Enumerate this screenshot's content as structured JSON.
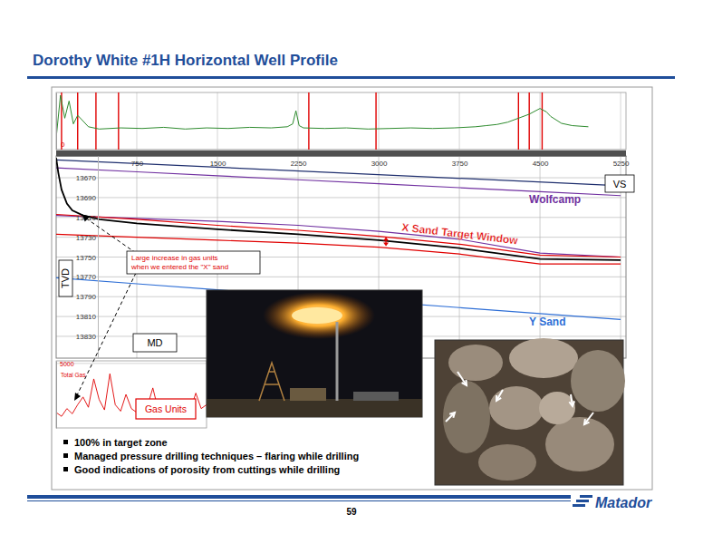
{
  "chart_data": [
    {
      "type": "line",
      "title": "Dorothy White #1H Horizontal Well Profile",
      "x_label": "VS",
      "y_label": "TVD",
      "xlim": [
        0,
        5300
      ],
      "ylim": [
        13648,
        13852
      ],
      "xticks": [
        750,
        1500,
        2250,
        3000,
        3750,
        4500,
        5250
      ],
      "yticks": [
        13670,
        13690,
        13710,
        13730,
        13750,
        13770,
        13790,
        13810,
        13830
      ],
      "grid": true,
      "series": [
        {
          "color": "#1f2f6e",
          "x": [
            0,
            5250
          ],
          "values": [
            13652,
            13678
          ]
        },
        {
          "name": "Wolfcamp",
          "color": "#7030a0",
          "x": [
            0,
            750,
            1500,
            2250,
            3000,
            3750,
            4500,
            5250
          ],
          "values": [
            13660,
            13664,
            13668,
            13672,
            13676,
            13680,
            13684,
            13688
          ]
        },
        {
          "color": "#7030a0",
          "x": [
            0,
            750,
            1500,
            2250,
            3000,
            3750,
            4500,
            5250
          ],
          "values": [
            13708,
            13711,
            13714,
            13718,
            13724,
            13732,
            13746,
            13750
          ]
        },
        {
          "color": "#e00000",
          "x": [
            0,
            750,
            1500,
            2250,
            3000,
            3750,
            4500,
            5250
          ],
          "values": [
            13707,
            13712,
            13718,
            13723,
            13729,
            13737,
            13748,
            13750
          ]
        },
        {
          "color": "#e00000",
          "x": [
            0,
            750,
            1500,
            2250,
            3000,
            3750,
            4500,
            5250
          ],
          "values": [
            13727,
            13730,
            13733,
            13736,
            13740,
            13747,
            13757,
            13757
          ]
        },
        {
          "color": "#000000",
          "x": [
            0,
            20,
            50,
            100,
            150,
            250,
            400,
            750,
            1500,
            2250,
            3000,
            3750,
            4500,
            5250
          ],
          "values": [
            13650,
            13665,
            13682,
            13696,
            13703,
            13708,
            13712,
            13716,
            13722,
            13727,
            13733,
            13741,
            13752,
            13753
          ]
        },
        {
          "name": "Y Sand",
          "color": "#2f6fd6",
          "x": [
            0,
            750,
            1500,
            2250,
            3000,
            3750,
            4500,
            5250
          ],
          "values": [
            13771,
            13777,
            13783,
            13789,
            13795,
            13801,
            13807,
            13813
          ]
        }
      ],
      "annotations": [
        {
          "text": "X Sand Target Window",
          "color": "#e00000"
        },
        {
          "text": "MD"
        }
      ],
      "callout": [
        "Large increase in gas units",
        "when we entered the \"X\" sand"
      ]
    },
    {
      "type": "line",
      "xlim": [
        0,
        5300
      ],
      "ylim": [
        0,
        100
      ],
      "xticks": [
        750,
        1500,
        2250,
        3000,
        3750,
        4500,
        5250
      ],
      "yticks": [
        0
      ],
      "tick_labels": "y",
      "grid": true,
      "series": [
        {
          "color": "#2e8b2e",
          "x": [
            0,
            40,
            80,
            120,
            160,
            200,
            300,
            400,
            600,
            800,
            1000,
            1200,
            1400,
            1600,
            1800,
            2000,
            2150,
            2200,
            2230,
            2260,
            2300,
            2500,
            2700,
            2900,
            3100,
            3300,
            3500,
            3700,
            3900,
            4000,
            4100,
            4200,
            4300,
            4400,
            4500,
            4560,
            4600,
            4700,
            4800,
            4950
          ],
          "values": [
            20,
            95,
            55,
            85,
            45,
            60,
            40,
            36,
            38,
            37,
            39,
            36,
            38,
            37,
            39,
            38,
            40,
            45,
            68,
            42,
            38,
            37,
            38,
            36,
            37,
            38,
            37,
            38,
            40,
            42,
            44,
            48,
            55,
            62,
            72,
            66,
            58,
            46,
            42,
            40
          ]
        }
      ],
      "events": {
        "color": "#e00000",
        "x": [
          50,
          200,
          370,
          580,
          2350,
          2975,
          4300,
          4400,
          4520
        ]
      }
    },
    {
      "type": "line",
      "title": "Gas Units",
      "xlim": [
        0,
        1400
      ],
      "ylim": [
        0,
        5200
      ],
      "yticks": [
        5000
      ],
      "tick_labels": "y",
      "grid": true,
      "series": [
        {
          "name": "Total Gas",
          "color": "#e00000",
          "x": [
            0,
            50,
            100,
            150,
            200,
            250,
            300,
            350,
            400,
            450,
            500,
            550,
            600,
            650,
            700,
            750,
            800,
            850,
            900,
            950,
            1000,
            1050,
            1100,
            1150,
            1200,
            1250,
            1300,
            1350,
            1400
          ],
          "values": [
            1200,
            900,
            1500,
            1100,
            1800,
            2400,
            1600,
            3800,
            2200,
            1400,
            4200,
            1800,
            1300,
            2600,
            1500,
            1200,
            2000,
            1700,
            3100,
            1400,
            1800,
            1300,
            2200,
            1600,
            1900,
            1400,
            2700,
            1500,
            1800
          ]
        }
      ]
    }
  ],
  "slide": {
    "bullets": [
      "100% in target zone",
      "Managed pressure drilling techniques – flaring while drilling",
      "Good indications of porosity from cuttings while drilling"
    ],
    "page": "59",
    "logo": "Matador"
  }
}
